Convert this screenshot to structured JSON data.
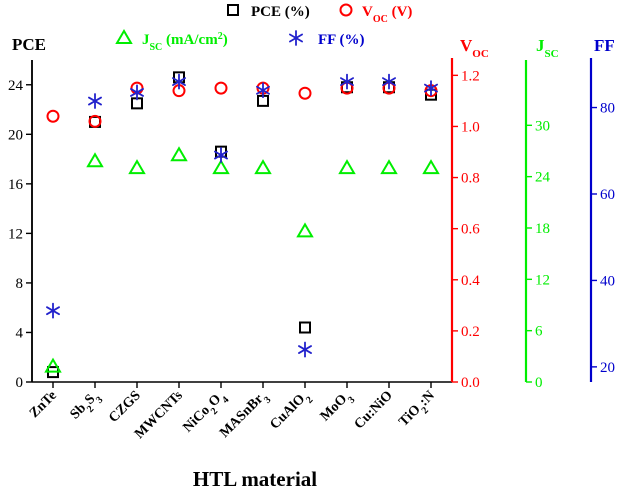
{
  "chart_data": {
    "type": "scatter",
    "xlabel": "HTL material",
    "categories": [
      "ZnTe",
      "Sb2S3",
      "CZGS",
      "MWCNTs",
      "NiCo2O4",
      "MASnBr3",
      "CuAlO2",
      "MoO3",
      "Cu:NiO",
      "TiO2:N"
    ],
    "category_labels": [
      {
        "base": "ZnTe",
        "parts": []
      },
      {
        "base": "Sb",
        "parts": [
          {
            "t": "2",
            "sub": true
          },
          {
            "t": "S",
            "sub": false
          },
          {
            "t": "3",
            "sub": true
          }
        ]
      },
      {
        "base": "CZGS",
        "parts": []
      },
      {
        "base": "MWCNTs",
        "parts": []
      },
      {
        "base": "NiCo",
        "parts": [
          {
            "t": "2",
            "sub": true
          },
          {
            "t": "O",
            "sub": false
          },
          {
            "t": "4",
            "sub": true
          }
        ]
      },
      {
        "base": "MASnBr",
        "parts": [
          {
            "t": "3",
            "sub": true
          }
        ]
      },
      {
        "base": "CuAlO",
        "parts": [
          {
            "t": "2",
            "sub": true
          }
        ]
      },
      {
        "base": "MoO",
        "parts": [
          {
            "t": "3",
            "sub": true
          }
        ]
      },
      {
        "base": "Cu:NiO",
        "parts": []
      },
      {
        "base": "TiO",
        "parts": [
          {
            "t": "2",
            "sub": true
          },
          {
            "t": ":N",
            "sub": false
          }
        ]
      }
    ],
    "axes": [
      {
        "key": "pce",
        "title": "PCE",
        "sub": "",
        "color": "#000000",
        "range": [
          0,
          26
        ],
        "ticks": [
          "0",
          "4",
          "8",
          "12",
          "16",
          "20",
          "24"
        ],
        "tick_values": [
          0,
          4,
          8,
          12,
          16,
          20,
          24
        ]
      },
      {
        "key": "voc",
        "title": "V",
        "sub": "OC",
        "color": "#ff0000",
        "range": [
          0,
          1.26
        ],
        "ticks": [
          "0.0",
          "0.2",
          "0.4",
          "0.6",
          "0.8",
          "1.0",
          "1.2"
        ],
        "tick_values": [
          0,
          0.2,
          0.4,
          0.6,
          0.8,
          1.0,
          1.2
        ]
      },
      {
        "key": "jsc",
        "title": "J",
        "sub": "SC",
        "color": "#00ee00",
        "range": [
          0,
          37.4
        ],
        "ticks": [
          "0",
          "6",
          "12",
          "18",
          "24",
          "30"
        ],
        "tick_values": [
          0,
          6,
          12,
          18,
          24,
          30
        ]
      },
      {
        "key": "ff",
        "title": "FF",
        "sub": "",
        "color": "#0000cc",
        "range": [
          16.5,
          91
        ],
        "ticks": [
          "20",
          "40",
          "60",
          "80"
        ],
        "tick_values": [
          20,
          40,
          60,
          80
        ]
      }
    ],
    "series": [
      {
        "name": "PCE (%)",
        "axis": "pce",
        "marker": "square",
        "color": "#000000",
        "values": [
          0.8,
          21.0,
          22.5,
          24.6,
          18.6,
          22.7,
          4.4,
          23.8,
          23.8,
          23.2
        ]
      },
      {
        "name": "VOC (V)",
        "axis": "voc",
        "marker": "circle",
        "color": "#ff0000",
        "values": [
          1.04,
          1.02,
          1.15,
          1.14,
          1.15,
          1.15,
          1.13,
          1.15,
          1.15,
          1.14
        ]
      },
      {
        "name": "JSC (mA/cm2)",
        "axis": "jsc",
        "marker": "triangle",
        "color": "#00ee00",
        "values": [
          1.8,
          25.8,
          25.0,
          26.5,
          25.0,
          25.0,
          17.6,
          25.0,
          25.0,
          25.0
        ]
      },
      {
        "name": "FF (%)",
        "axis": "ff",
        "marker": "asterisk",
        "color": "#2222cc",
        "values": [
          33.0,
          81.5,
          83.5,
          86.0,
          69.0,
          84.0,
          24.0,
          86.0,
          86.0,
          84.5
        ]
      }
    ],
    "legend": [
      {
        "series": "pce",
        "text": "PCE (%)",
        "base": "PCE (%)",
        "sub": "",
        "tail": "",
        "color": "#000000"
      },
      {
        "series": "voc",
        "text": "VOC (V)",
        "base": "V",
        "sub": "OC",
        "tail": " (V)",
        "color": "#ff0000"
      },
      {
        "series": "jsc",
        "text": "JSC (mA/cm2)",
        "base": "J",
        "sub": "SC",
        "tail": " (mA/cm",
        "sup": "2",
        "close": ")",
        "color": "#00ee00"
      },
      {
        "series": "ff",
        "text": "FF (%)",
        "base": "FF (%)",
        "sub": "",
        "tail": "",
        "color": "#0000cc"
      }
    ]
  }
}
